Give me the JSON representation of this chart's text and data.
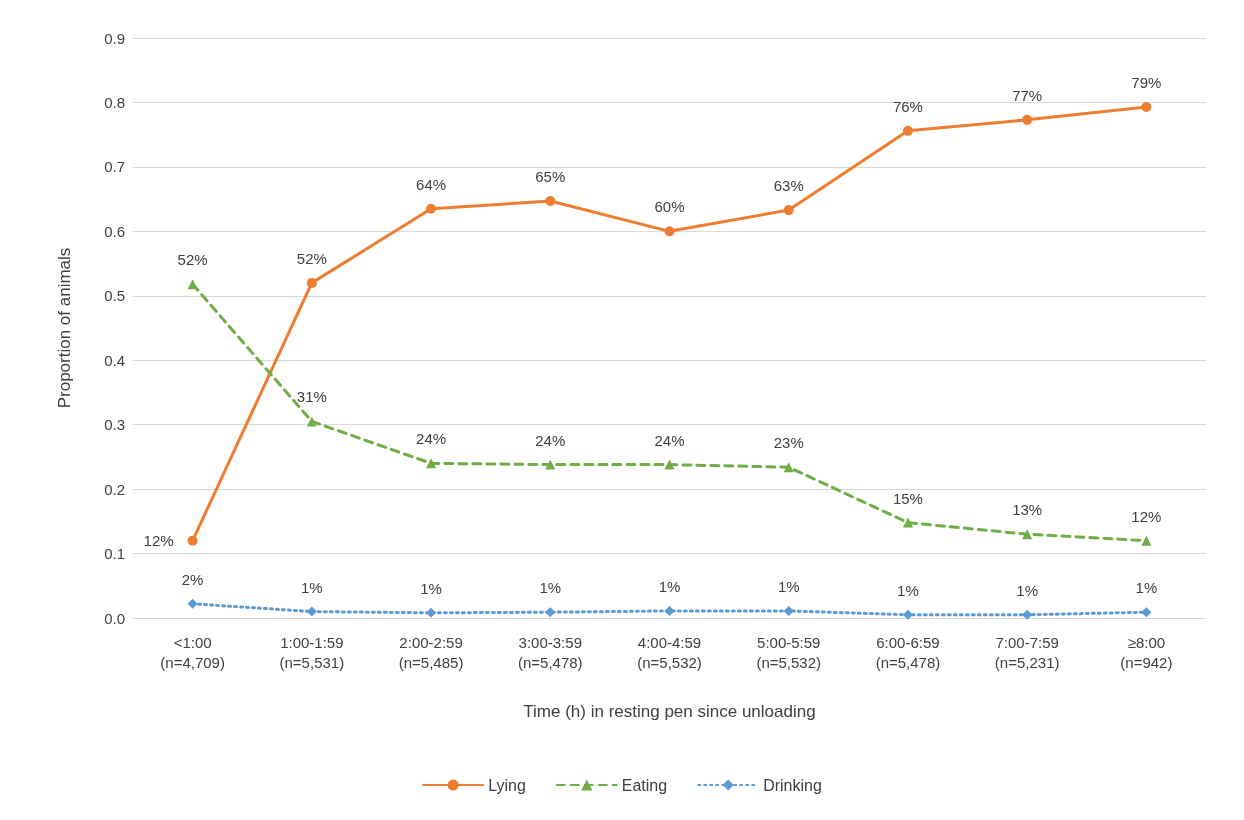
{
  "chart_data": {
    "type": "line",
    "xlabel": "Time (h) in resting pen since unloading",
    "ylabel": "Proportion of animals",
    "categories": [
      "<1:00\n(n=4,709)",
      "1:00-1:59\n(n=5,531)",
      "2:00-2:59\n(n=5,485)",
      "3:00-3:59\n(n=5,478)",
      "4:00-4:59\n(n=5,532)",
      "5:00-5:59\n(n=5,532)",
      "6:00-6:59\n(n=5,478)",
      "7:00-7:59\n(n=5,231)",
      "≥8:00\n(n=942)"
    ],
    "series": [
      {
        "name": "Lying",
        "color": "#ed7d31",
        "marker": "circle",
        "line_style": "solid",
        "values": [
          0.12,
          0.52,
          0.635,
          0.647,
          0.6,
          0.633,
          0.756,
          0.773,
          0.793
        ],
        "value_labels": [
          "12%",
          "52%",
          "64%",
          "65%",
          "60%",
          "63%",
          "76%",
          "77%",
          "79%"
        ]
      },
      {
        "name": "Eating",
        "color": "#70ad47",
        "marker": "triangle",
        "line_style": "dashed",
        "values": [
          0.518,
          0.305,
          0.24,
          0.238,
          0.238,
          0.234,
          0.148,
          0.13,
          0.12
        ],
        "value_labels": [
          "52%",
          "31%",
          "24%",
          "24%",
          "24%",
          "23%",
          "15%",
          "13%",
          "12%"
        ]
      },
      {
        "name": "Drinking",
        "color": "#5b9bd5",
        "marker": "diamond",
        "line_style": "dotted",
        "values": [
          0.022,
          0.01,
          0.008,
          0.009,
          0.011,
          0.011,
          0.005,
          0.005,
          0.009
        ],
        "value_labels": [
          "2%",
          "1%",
          "1%",
          "1%",
          "1%",
          "1%",
          "1%",
          "1%",
          "1%"
        ]
      }
    ],
    "ylim": [
      0,
      0.9
    ],
    "yticks": [
      {
        "value": 0,
        "label": "0.0"
      },
      0.1,
      0.2,
      0.3,
      0.4,
      0.5,
      0.6,
      0.7,
      0.8,
      0.9
    ],
    "grid": "y",
    "legend": "bottom"
  }
}
